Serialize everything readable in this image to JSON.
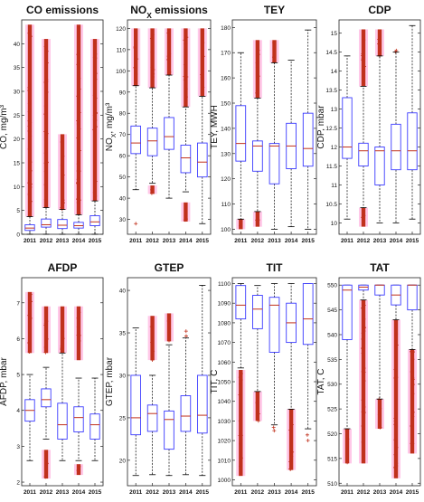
{
  "chart_data": [
    {
      "type": "box",
      "title": "CO emissions",
      "title_parts": {
        "base": "CO emissions",
        "sub": ""
      },
      "ylabel": "CO, mg/m³",
      "ylim": [
        0,
        45
      ],
      "yticks": [
        0,
        5,
        10,
        15,
        20,
        25,
        30,
        35,
        40
      ],
      "categories": [
        "2011",
        "2012",
        "2013",
        "2014",
        "2015"
      ],
      "boxes": [
        {
          "q1": 0.8,
          "median": 1.3,
          "q3": 2.0,
          "wlo": 0.0,
          "whi": 3.7,
          "out_lo": 3.7,
          "out_hi": 44
        },
        {
          "q1": 1.5,
          "median": 2.0,
          "q3": 3.2,
          "wlo": 0.0,
          "whi": 5.6,
          "out_lo": 5.6,
          "out_hi": 41
        },
        {
          "q1": 1.2,
          "median": 1.9,
          "q3": 3.1,
          "wlo": 0.0,
          "whi": 5.2,
          "out_lo": 5.2,
          "out_hi": 21
        },
        {
          "q1": 1.3,
          "median": 1.8,
          "q3": 2.5,
          "wlo": 0.0,
          "whi": 4.1,
          "out_lo": 4.1,
          "out_hi": 44
        },
        {
          "q1": 1.8,
          "median": 2.6,
          "q3": 3.9,
          "wlo": 0.0,
          "whi": 7.0,
          "out_lo": 7.0,
          "out_hi": 41
        }
      ]
    },
    {
      "type": "box",
      "title": "NOX emissions",
      "title_parts": {
        "base": "NO",
        "sub": "X",
        "rest": " emissions"
      },
      "ylabel": "NOX, mg/m³",
      "ylabel_parts": {
        "base": "NO",
        "sub": "X",
        "rest": ", mg/m³"
      },
      "ylim": [
        23,
        124
      ],
      "yticks": [
        30,
        40,
        50,
        60,
        70,
        80,
        90,
        100,
        110,
        120
      ],
      "categories": [
        "2011",
        "2012",
        "2013",
        "2014",
        "2015"
      ],
      "boxes": [
        {
          "q1": 61,
          "median": 66,
          "q3": 74,
          "wlo": 44,
          "whi": 93,
          "out_lo": 93,
          "out_hi": 120,
          "low_out": [
            28
          ]
        },
        {
          "q1": 60,
          "median": 67,
          "q3": 73,
          "wlo": 47,
          "whi": 92,
          "out_lo": 92,
          "out_hi": 120,
          "low_cluster": [
            42,
            46
          ]
        },
        {
          "q1": 63,
          "median": 69,
          "q3": 78,
          "wlo": 40,
          "whi": 98,
          "out_lo": 98,
          "out_hi": 120
        },
        {
          "q1": 52,
          "median": 59,
          "q3": 65,
          "wlo": 43,
          "whi": 83,
          "out_lo": 83,
          "out_hi": 120,
          "low_cluster": [
            29,
            38
          ]
        },
        {
          "q1": 50,
          "median": 57,
          "q3": 66,
          "wlo": 28,
          "whi": 88,
          "out_lo": 88,
          "out_hi": 120
        }
      ]
    },
    {
      "type": "box",
      "title": "TEY",
      "ylabel": "TEY, MWH",
      "ylim": [
        98,
        183
      ],
      "yticks": [
        100,
        110,
        120,
        130,
        140,
        150,
        160,
        170,
        180
      ],
      "categories": [
        "2011",
        "2012",
        "2013",
        "2014",
        "2015"
      ],
      "boxes": [
        {
          "q1": 127,
          "median": 134,
          "q3": 149,
          "wlo": 104,
          "whi": 170,
          "low_cluster": [
            100,
            104
          ]
        },
        {
          "q1": 123,
          "median": 133,
          "q3": 135,
          "wlo": 107,
          "whi": 152,
          "out_lo": 152,
          "out_hi": 175,
          "low_cluster": [
            101,
            107
          ]
        },
        {
          "q1": 118,
          "median": 133,
          "q3": 134,
          "wlo": 100,
          "whi": 166,
          "out_lo": 166,
          "out_hi": 175
        },
        {
          "q1": 124,
          "median": 133,
          "q3": 142,
          "wlo": 101,
          "whi": 167
        },
        {
          "q1": 125,
          "median": 132,
          "q3": 146,
          "wlo": 100,
          "whi": 179
        }
      ]
    },
    {
      "type": "box",
      "title": "CDP",
      "ylabel": "CDP, mbar",
      "ylim": [
        9.7,
        15.35
      ],
      "yticks": [
        10,
        10.5,
        11,
        11.5,
        12,
        12.5,
        13,
        13.5,
        14,
        14.5,
        15
      ],
      "categories": [
        "2011",
        "2012",
        "2013",
        "2014",
        "2015"
      ],
      "boxes": [
        {
          "q1": 11.7,
          "median": 12.0,
          "q3": 13.3,
          "wlo": 10.1,
          "whi": 14.4
        },
        {
          "q1": 11.5,
          "median": 11.9,
          "q3": 12.1,
          "wlo": 10.4,
          "whi": 13.6,
          "out_lo": 13.6,
          "out_hi": 15.1,
          "low_cluster": [
            9.9,
            10.4
          ]
        },
        {
          "q1": 11.0,
          "median": 11.9,
          "q3": 12.0,
          "wlo": 10.0,
          "whi": 14.4,
          "out_lo": 14.4,
          "out_hi": 15.1
        },
        {
          "q1": 11.4,
          "median": 11.9,
          "q3": 12.6,
          "wlo": 10.0,
          "whi": 14.5,
          "out_lo": 14.5,
          "out_hi": 14.6
        },
        {
          "q1": 11.4,
          "median": 11.9,
          "q3": 12.9,
          "wlo": 10.1,
          "whi": 15.2
        }
      ]
    },
    {
      "type": "box",
      "title": "AFDP",
      "ylabel": "AFDP, mbar",
      "ylim": [
        1.9,
        7.7
      ],
      "yticks": [
        2,
        3,
        4,
        5,
        6,
        7
      ],
      "categories": [
        "2011",
        "2012",
        "2013",
        "2014",
        "2015"
      ],
      "boxes": [
        {
          "q1": 3.7,
          "median": 4.0,
          "q3": 4.3,
          "wlo": 2.6,
          "whi": 5.0,
          "out_lo": 5.6,
          "out_hi": 7.3
        },
        {
          "q1": 4.1,
          "median": 4.3,
          "q3": 4.6,
          "wlo": 3.2,
          "whi": 5.2,
          "out_lo": 5.6,
          "out_hi": 6.9,
          "low_cluster": [
            2.1,
            2.9
          ]
        },
        {
          "q1": 3.2,
          "median": 3.6,
          "q3": 4.2,
          "wlo": 2.6,
          "whi": 5.6,
          "out_lo": 5.6,
          "out_hi": 6.9
        },
        {
          "q1": 3.4,
          "median": 3.8,
          "q3": 4.1,
          "wlo": 2.6,
          "whi": 4.9,
          "out_lo": 5.4,
          "out_hi": 6.9,
          "low_cluster": [
            2.2,
            2.5
          ]
        },
        {
          "q1": 3.2,
          "median": 3.6,
          "q3": 3.9,
          "wlo": 2.6,
          "whi": 4.9
        }
      ]
    },
    {
      "type": "box",
      "title": "GTEP",
      "ylabel": "GTEP, mbar",
      "ylim": [
        17,
        41.5
      ],
      "yticks": [
        20,
        25,
        30,
        35,
        40
      ],
      "categories": [
        "2011",
        "2012",
        "2013",
        "2014",
        "2015"
      ],
      "boxes": [
        {
          "q1": 23.0,
          "median": 25.0,
          "q3": 30.0,
          "wlo": 18.2,
          "whi": 35.6
        },
        {
          "q1": 23.4,
          "median": 25.5,
          "q3": 26.5,
          "wlo": 18.3,
          "whi": 30.0,
          "out_lo": 31.8,
          "out_hi": 37.0
        },
        {
          "q1": 21.3,
          "median": 24.8,
          "q3": 25.8,
          "wlo": 18.2,
          "whi": 33.6,
          "out_lo": 34.0,
          "out_hi": 37.3
        },
        {
          "q1": 23.4,
          "median": 25.2,
          "q3": 27.6,
          "wlo": 18.3,
          "whi": 34.4,
          "out_lo": 34.6,
          "out_hi": 36.0
        },
        {
          "q1": 23.2,
          "median": 25.3,
          "q3": 30.0,
          "wlo": 18.2,
          "whi": 40.6
        }
      ]
    },
    {
      "type": "box",
      "title": "TIT",
      "ylabel": "TIT, C",
      "ylim": [
        997,
        1103
      ],
      "yticks": [
        1000,
        1010,
        1020,
        1030,
        1040,
        1050,
        1060,
        1070,
        1080,
        1090,
        1100
      ],
      "categories": [
        "2011",
        "2012",
        "2013",
        "2014",
        "2015"
      ],
      "boxes": [
        {
          "q1": 1082,
          "median": 1089,
          "q3": 1099,
          "wlo": 1057,
          "whi": 1100,
          "out_lo": 1002,
          "out_hi": 1056
        },
        {
          "q1": 1077,
          "median": 1087,
          "q3": 1094,
          "wlo": 1045,
          "whi": 1099,
          "out_lo": 1030,
          "out_hi": 1045
        },
        {
          "q1": 1065,
          "median": 1089,
          "q3": 1093,
          "wlo": 1028,
          "whi": 1100,
          "out_lo": 1020,
          "out_hi": 1028
        },
        {
          "q1": 1070,
          "median": 1080,
          "q3": 1090,
          "wlo": 1036,
          "whi": 1100,
          "out_lo": 1005,
          "out_hi": 1036
        },
        {
          "q1": 1069,
          "median": 1082,
          "q3": 1100,
          "wlo": 1026,
          "whi": 1100,
          "out_lo": 1018,
          "out_hi": 1026
        }
      ]
    },
    {
      "type": "box",
      "title": "TAT",
      "ylabel": "TAT, C",
      "ylim": [
        509.5,
        551.5
      ],
      "yticks": [
        510,
        515,
        520,
        525,
        530,
        535,
        540,
        545,
        550
      ],
      "categories": [
        "2011",
        "2012",
        "2013",
        "2014",
        "2015"
      ],
      "boxes": [
        {
          "q1": 539,
          "median": 549,
          "q3": 550,
          "wlo": 521,
          "whi": 550,
          "out_lo": 514,
          "out_hi": 521
        },
        {
          "q1": 549,
          "median": 549.6,
          "q3": 550,
          "wlo": 547,
          "whi": 550,
          "out_lo": 514,
          "out_hi": 547
        },
        {
          "q1": 548,
          "median": 550,
          "q3": 550,
          "wlo": 527,
          "whi": 550,
          "out_lo": 521,
          "out_hi": 527
        },
        {
          "q1": 546,
          "median": 548,
          "q3": 550,
          "wlo": 543,
          "whi": 550,
          "out_lo": 511,
          "out_hi": 543
        },
        {
          "q1": 545,
          "median": 550,
          "q3": 550,
          "wlo": 537,
          "whi": 550,
          "out_lo": 516,
          "out_hi": 537
        }
      ]
    }
  ]
}
